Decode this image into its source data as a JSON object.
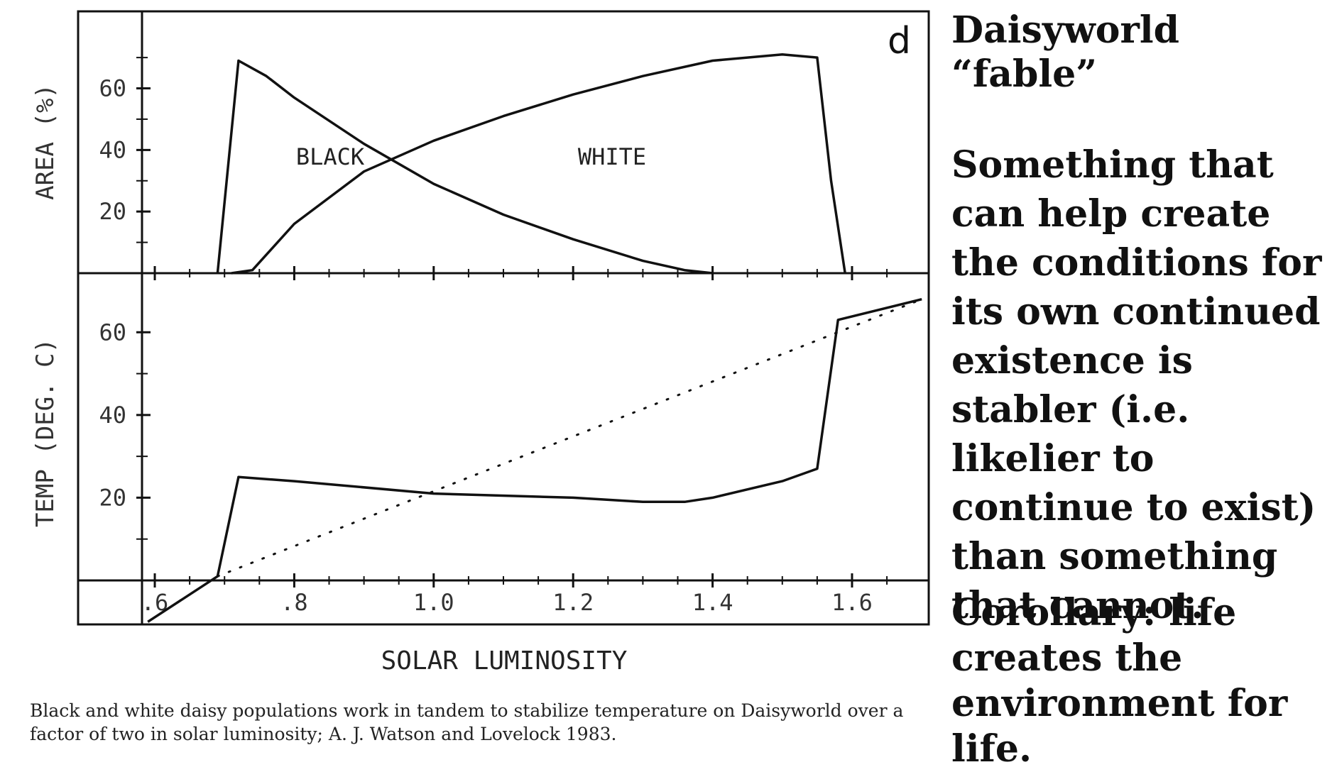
{
  "chart_data": [
    {
      "type": "line",
      "panel_label": "d",
      "ylabel": "AREA (%)",
      "xlabel": "",
      "xlim": [
        0.49,
        1.71
      ],
      "ylim": [
        0,
        85
      ],
      "y_tick_labels": [
        "60",
        "40",
        "20"
      ],
      "y_tick_values": [
        60,
        40,
        20
      ],
      "series": [
        {
          "name": "BLACK",
          "x": [
            0.69,
            0.72,
            0.76,
            0.8,
            0.9,
            1.0,
            1.1,
            1.2,
            1.3,
            1.36,
            1.4
          ],
          "y": [
            0,
            69,
            64,
            57,
            42,
            29,
            19,
            11,
            4,
            1,
            0
          ]
        },
        {
          "name": "WHITE",
          "x": [
            0.71,
            0.74,
            0.8,
            0.9,
            1.0,
            1.1,
            1.2,
            1.3,
            1.4,
            1.5,
            1.55,
            1.57,
            1.59
          ],
          "y": [
            0,
            1,
            16,
            33,
            43,
            51,
            58,
            64,
            69,
            71,
            70,
            30,
            0
          ]
        }
      ]
    },
    {
      "type": "line",
      "ylabel": "TEMP (DEG. C)",
      "xlabel": "SOLAR LUMINOSITY",
      "xlim": [
        0.49,
        1.71
      ],
      "ylim": [
        -10,
        70
      ],
      "x_tick_labels": [
        ".6",
        ".8",
        "1.0",
        "1.2",
        "1.4",
        "1.6"
      ],
      "x_tick_values": [
        0.6,
        0.8,
        1.0,
        1.2,
        1.4,
        1.6
      ],
      "y_tick_labels": [
        "60",
        "40",
        "20"
      ],
      "y_tick_values": [
        60,
        40,
        20
      ],
      "series": [
        {
          "style": "solid",
          "x": [
            0.59,
            0.69,
            0.72,
            0.8,
            1.0,
            1.2,
            1.3,
            1.36,
            1.4,
            1.5,
            1.55,
            1.58,
            1.7
          ],
          "y": [
            -10,
            1,
            25,
            24,
            21,
            20,
            19,
            19,
            20,
            24,
            27,
            63,
            68
          ]
        },
        {
          "style": "dotted",
          "x": [
            0.69,
            1.7
          ],
          "y": [
            1,
            68
          ]
        }
      ]
    }
  ],
  "caption": "Black and white daisy populations work in tandem to stabilize temperature on Daisyworld over a factor of two in solar luminosity; A. J. Watson and Lovelock 1983.",
  "side": {
    "title": "Daisyworld “fable”",
    "body": "Something that can help create the conditions for its own continued existence is stabler (i.e. likelier to continue to exist) than something that cannot.",
    "corollary": "Corollary: life creates the environment for life."
  },
  "colors": {
    "ink": "#111111",
    "background": "#ffffff"
  }
}
